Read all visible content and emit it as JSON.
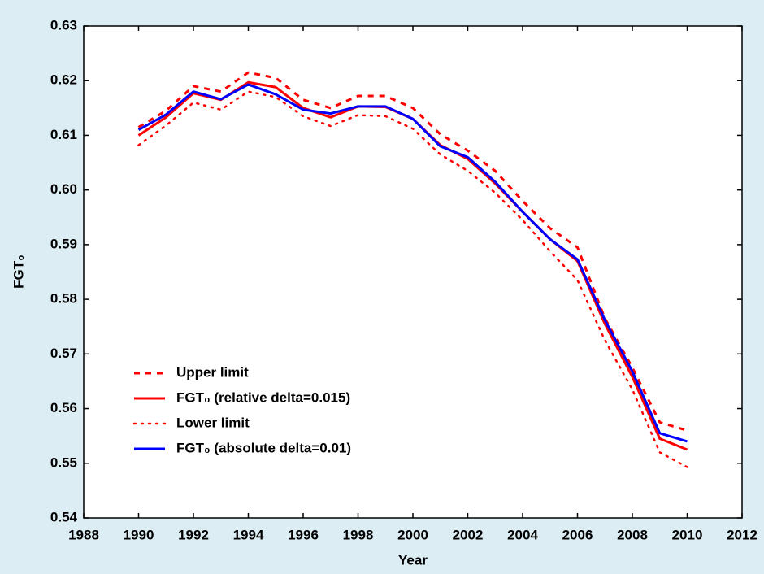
{
  "chart_data": {
    "type": "line",
    "xlabel": "Year",
    "ylabel": "FGT₀",
    "x": [
      1990,
      1991,
      1992,
      1993,
      1994,
      1995,
      1996,
      1997,
      1998,
      1999,
      2000,
      2001,
      2002,
      2003,
      2004,
      2005,
      2006,
      2007,
      2008,
      2009,
      2010
    ],
    "series": [
      {
        "name": "Upper limit",
        "color": "#ff0000",
        "dash": "dashed",
        "values": [
          0.6115,
          0.6145,
          0.619,
          0.618,
          0.6215,
          0.6205,
          0.6165,
          0.615,
          0.6172,
          0.6172,
          0.615,
          0.6102,
          0.6072,
          0.6035,
          0.598,
          0.593,
          0.5895,
          0.5765,
          0.5675,
          0.5575,
          0.556
        ]
      },
      {
        "name": "FGT₀ (relative delta=0.015)",
        "color": "#ff0000",
        "dash": "solid",
        "values": [
          0.61,
          0.6133,
          0.6177,
          0.6165,
          0.6197,
          0.6188,
          0.615,
          0.6133,
          0.6153,
          0.6152,
          0.613,
          0.6082,
          0.6057,
          0.6012,
          0.596,
          0.591,
          0.587,
          0.5755,
          0.5658,
          0.5545,
          0.5525
        ]
      },
      {
        "name": "Lower limit",
        "color": "#ff0000",
        "dash": "dotted",
        "values": [
          0.6082,
          0.6118,
          0.616,
          0.6147,
          0.618,
          0.617,
          0.6135,
          0.6117,
          0.6137,
          0.6135,
          0.6112,
          0.6065,
          0.6035,
          0.5995,
          0.5945,
          0.5888,
          0.5835,
          0.5725,
          0.5635,
          0.552,
          0.5493
        ]
      },
      {
        "name": "FGT₀ (absolute delta=0.01)",
        "color": "#0000ff",
        "dash": "solid",
        "values": [
          0.611,
          0.6138,
          0.618,
          0.6166,
          0.6193,
          0.6175,
          0.6147,
          0.614,
          0.6153,
          0.6153,
          0.613,
          0.608,
          0.606,
          0.6015,
          0.596,
          0.591,
          0.5873,
          0.5762,
          0.5668,
          0.5555,
          0.554
        ]
      }
    ],
    "xlim": [
      1988,
      2012
    ],
    "xticks": [
      1988,
      1990,
      1992,
      1994,
      1996,
      1998,
      2000,
      2002,
      2004,
      2006,
      2008,
      2010,
      2012
    ],
    "ylim": [
      0.54,
      0.63
    ],
    "yticks": [
      0.54,
      0.55,
      0.56,
      0.57,
      0.58,
      0.59,
      {
        "value": 0.6,
        "label": "0.60"
      },
      0.61,
      0.62,
      0.63
    ],
    "legend": "lower left",
    "grid": false
  }
}
